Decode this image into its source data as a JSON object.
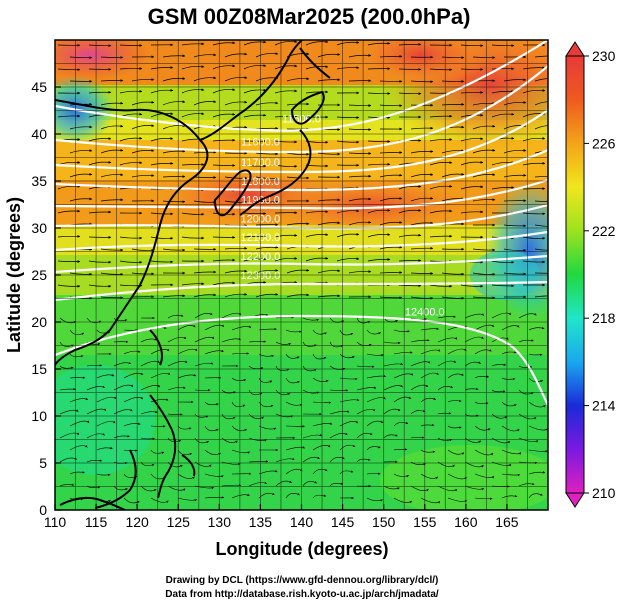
{
  "title": "GSM 00Z08Mar2025 (200.0hPa)",
  "x_axis": {
    "label": "Longitude (degrees)",
    "ticks": [
      "110",
      "115",
      "120",
      "125",
      "130",
      "135",
      "140",
      "145",
      "150",
      "155",
      "160",
      "165"
    ],
    "range": [
      110,
      170
    ]
  },
  "y_axis": {
    "label": "Latitude  (degrees)",
    "ticks": [
      "0",
      "5",
      "10",
      "15",
      "20",
      "25",
      "30",
      "35",
      "40",
      "45"
    ],
    "range": [
      0,
      50
    ]
  },
  "colorbar": {
    "ticks": [
      "210",
      "214",
      "218",
      "222",
      "226",
      "230"
    ],
    "range": [
      210,
      230
    ],
    "colors": [
      "#e020c0",
      "#7a1ae0",
      "#1a2ad8",
      "#1aa8ee",
      "#20e6c8",
      "#20d840",
      "#9ce21e",
      "#f0e61e",
      "#f4a418",
      "#ee5a20",
      "#e83a38"
    ]
  },
  "contours": {
    "color": "#ffffff",
    "labels": [
      {
        "text": "11500.0",
        "lat": 41.2,
        "lon": 140
      },
      {
        "text": "11600.0",
        "lat": 38.8,
        "lon": 135
      },
      {
        "text": "11700.0",
        "lat": 36.6,
        "lon": 135
      },
      {
        "text": "11800.0",
        "lat": 34.6,
        "lon": 135
      },
      {
        "text": "11900.0",
        "lat": 32.6,
        "lon": 135
      },
      {
        "text": "12000.0",
        "lat": 30.6,
        "lon": 135
      },
      {
        "text": "12100.0",
        "lat": 28.6,
        "lon": 135
      },
      {
        "text": "12200.0",
        "lat": 26.6,
        "lon": 135
      },
      {
        "text": "12300.0",
        "lat": 24.6,
        "lon": 135
      },
      {
        "text": "12400.0",
        "lat": 20.7,
        "lon": 155
      }
    ]
  },
  "credits": {
    "line1": "Drawing by DCL (https://www.gfd-dennou.org/library/dcl/)",
    "line2": "Data from http://database.rish.kyoto-u.ac.jp/arch/jmadata/"
  }
}
